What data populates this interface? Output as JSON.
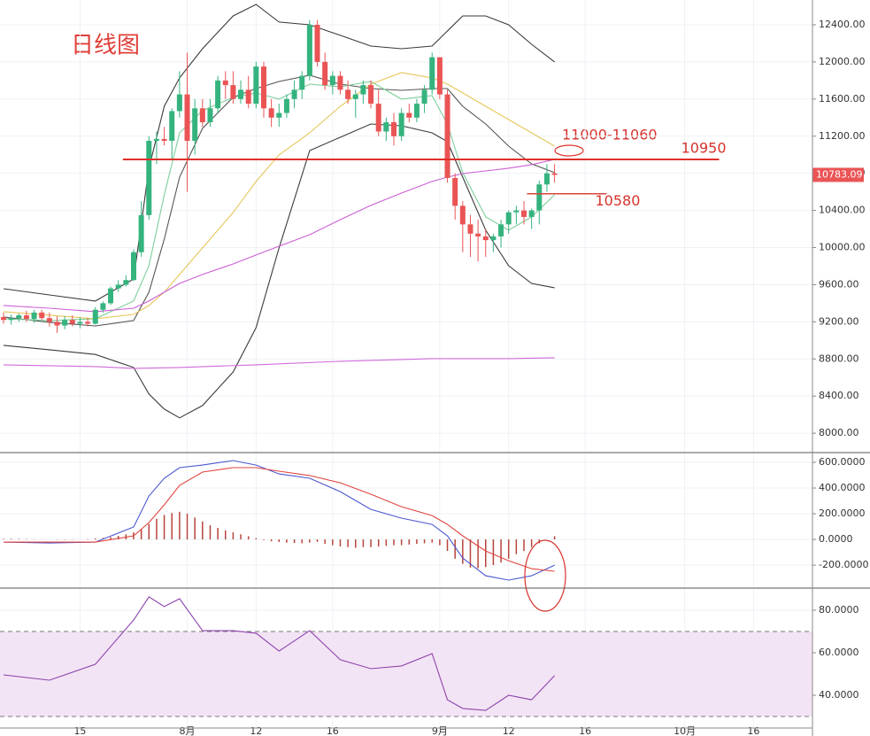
{
  "chart_data": [
    {
      "type": "candlestick",
      "title": "日线图",
      "range_label": "11000-11060",
      "xlim": [
        -0.46,
        105.7
      ],
      "ylim": [
        7801,
        12667
      ],
      "yticks": [
        {
          "value": 8000,
          "label": "8000.00"
        },
        {
          "value": 8400,
          "label": "8400.00"
        },
        {
          "value": 8800,
          "label": "8800.00"
        },
        {
          "value": 9200,
          "label": "9200.00"
        },
        {
          "value": 9600,
          "label": "9600.00"
        },
        {
          "value": 10000,
          "label": "10000.00"
        },
        {
          "value": 10400,
          "label": "10400.00"
        },
        {
          "value": 10800,
          "label": "10800.00"
        },
        {
          "value": 11200,
          "label": "11200.00"
        },
        {
          "value": 11600,
          "label": "11600.00"
        },
        {
          "value": 12000,
          "label": "12000.00"
        },
        {
          "value": 12400,
          "label": "12400.00"
        }
      ],
      "up_color": "#35b37e",
      "down_color": "#ea5455",
      "open": [
        9250,
        9220,
        9240,
        9270,
        9230,
        9300,
        9240,
        9200,
        9160,
        9220,
        9180,
        9200,
        9180,
        9330,
        9400,
        9560,
        9600,
        9650,
        9950,
        10350,
        11150,
        11170,
        11150,
        11470,
        11650,
        11150,
        11500,
        11350,
        11500,
        11800,
        11750,
        11600,
        11700,
        11550,
        11950,
        11500,
        11400,
        11450,
        11600,
        11700,
        11850,
        12400,
        12000,
        11750,
        11850,
        11700,
        11600,
        11650,
        11750,
        11550,
        11250,
        11350,
        11200,
        11450,
        11400,
        11550,
        11700,
        12050,
        11650,
        10750,
        10450,
        10250,
        10150,
        10120,
        10080,
        10120,
        10250,
        10380,
        10400,
        10330,
        10400,
        10680,
        10800
      ],
      "high": [
        9300,
        9280,
        9290,
        9320,
        9330,
        9330,
        9300,
        9260,
        9260,
        9270,
        9250,
        9240,
        9360,
        9420,
        9580,
        9650,
        9700,
        9980,
        10500,
        11200,
        11250,
        11300,
        11500,
        11900,
        12100,
        11600,
        11600,
        11600,
        11850,
        11900,
        11900,
        11800,
        11850,
        12000,
        12000,
        11600,
        11550,
        11650,
        11800,
        11900,
        12450,
        12450,
        12100,
        11900,
        11900,
        11800,
        11700,
        11800,
        11800,
        11700,
        11400,
        11450,
        11500,
        11550,
        11600,
        11750,
        12100,
        12050,
        11700,
        10800,
        10500,
        10350,
        10300,
        10200,
        10150,
        10300,
        10400,
        10450,
        10500,
        10420,
        10720,
        10900,
        10900
      ],
      "low": [
        9180,
        9170,
        9200,
        9200,
        9190,
        9220,
        9150,
        9080,
        9120,
        9150,
        9130,
        9150,
        9170,
        9300,
        9380,
        9520,
        9580,
        9640,
        9900,
        10300,
        10900,
        11100,
        10950,
        11400,
        10600,
        11000,
        11300,
        11300,
        11450,
        11600,
        11550,
        11550,
        11500,
        11500,
        11400,
        11300,
        11300,
        11400,
        11500,
        11600,
        11800,
        11950,
        11700,
        11650,
        11650,
        11550,
        11400,
        11550,
        11500,
        11200,
        11150,
        11100,
        11150,
        11350,
        11350,
        11450,
        11650,
        11600,
        10700,
        10300,
        9950,
        9900,
        9850,
        9900,
        9950,
        10000,
        10150,
        10250,
        10250,
        10200,
        10250,
        10600,
        10700
      ],
      "close": [
        9220,
        9240,
        9270,
        9230,
        9300,
        9240,
        9200,
        9160,
        9220,
        9180,
        9200,
        9180,
        9330,
        9400,
        9560,
        9600,
        9650,
        9950,
        10350,
        11150,
        11170,
        11150,
        11470,
        11650,
        11150,
        11500,
        11350,
        11500,
        11800,
        11750,
        11600,
        11700,
        11550,
        11950,
        11500,
        11400,
        11450,
        11600,
        11700,
        11850,
        12400,
        12000,
        11750,
        11850,
        11700,
        11600,
        11650,
        11750,
        11550,
        11250,
        11350,
        11200,
        11450,
        11400,
        11550,
        11700,
        12050,
        11650,
        10750,
        10450,
        10250,
        10150,
        10120,
        10080,
        10120,
        10250,
        10380,
        10400,
        10330,
        10400,
        10680,
        10800,
        10783.09
      ],
      "lines": [
        {
          "color": "#3a3a3a",
          "x": [
            0,
            6,
            12,
            17,
            19,
            21,
            23,
            26,
            30,
            33,
            36,
            40,
            44,
            48,
            52,
            56,
            58,
            60,
            63,
            66,
            69,
            72
          ],
          "values": [
            9557,
            9490,
            9424,
            9662,
            10855,
            11522,
            11828,
            12142,
            12495,
            12619,
            12429,
            12400,
            12286,
            12171,
            12142,
            12171,
            12333,
            12495,
            12495,
            12400,
            12190,
            12000
          ]
        },
        {
          "color": "#3a3a3a",
          "x": [
            0,
            6,
            12,
            17,
            19,
            21,
            23,
            26,
            30,
            33,
            36,
            40,
            44,
            48,
            52,
            56,
            58,
            60,
            63,
            66,
            69,
            72
          ],
          "values": [
            8947,
            8899,
            8849,
            8708,
            8422,
            8260,
            8165,
            8298,
            8660,
            9137,
            9996,
            11045,
            11188,
            11331,
            11312,
            11236,
            11141,
            10759,
            10187,
            9805,
            9614,
            9567
          ]
        },
        {
          "color": "#555555",
          "x": [
            0,
            6,
            12,
            17,
            19,
            21,
            23,
            26,
            30,
            33,
            36,
            40,
            44,
            48,
            52,
            56,
            58,
            60,
            63,
            66,
            69,
            72
          ],
          "values": [
            9252,
            9195,
            9156,
            9214,
            9519,
            10091,
            10759,
            11284,
            11618,
            11713,
            11789,
            11856,
            11761,
            11713,
            11694,
            11713,
            11713,
            11522,
            11331,
            11093,
            10902,
            10807
          ]
        },
        {
          "color": "#7ccf9a",
          "x": [
            0,
            6,
            12,
            17,
            19,
            21,
            23,
            26,
            30,
            33,
            36,
            40,
            44,
            48,
            52,
            56,
            58,
            60,
            63,
            66,
            69,
            72
          ],
          "values": [
            9233,
            9214,
            9233,
            9424,
            9805,
            10568,
            11236,
            11475,
            11618,
            11666,
            11599,
            11761,
            11732,
            11789,
            11599,
            11637,
            11331,
            10807,
            10330,
            10187,
            10330,
            10568
          ]
        },
        {
          "color": "#e6c65a",
          "x": [
            0,
            6,
            12,
            17,
            19,
            21,
            23,
            26,
            30,
            33,
            36,
            40,
            44,
            48,
            52,
            56,
            58,
            60,
            63,
            66,
            69,
            72
          ],
          "values": [
            9309,
            9271,
            9233,
            9280,
            9376,
            9519,
            9710,
            9996,
            10378,
            10712,
            10998,
            11236,
            11522,
            11761,
            11885,
            11828,
            11761,
            11666,
            11522,
            11379,
            11236,
            11093
          ]
        },
        {
          "color": "#cc5fd4",
          "x": [
            0,
            6,
            12,
            17,
            19,
            21,
            23,
            26,
            30,
            33,
            36,
            40,
            44,
            48,
            52,
            56,
            58,
            60,
            63,
            66,
            69,
            72
          ],
          "values": [
            9376,
            9347,
            9309,
            9347,
            9424,
            9519,
            9614,
            9710,
            9824,
            9920,
            10015,
            10139,
            10301,
            10454,
            10587,
            10712,
            10759,
            10797,
            10826,
            10855,
            10893,
            10950
          ]
        },
        {
          "color": "#d06ad8",
          "x": [
            0,
            12,
            17,
            23,
            33,
            44,
            56,
            66,
            72
          ],
          "values": [
            8737,
            8718,
            8699,
            8708,
            8737,
            8775,
            8804,
            8804,
            8813
          ]
        }
      ],
      "hlines": [
        {
          "value": 10950,
          "label": "10950",
          "color": "#e0302a",
          "x": [
            15.6,
            93.5
          ]
        },
        {
          "value": 10580,
          "label": "10580",
          "color": "#d9453f",
          "x": [
            68.4,
            78.8
          ]
        }
      ]
    },
    {
      "type": "macd",
      "xlim": [
        -0.46,
        105.7
      ],
      "ylim": [
        -372,
        669
      ],
      "yticks": [
        {
          "value": -200,
          "label": "-200.0000"
        },
        {
          "value": 0,
          "label": "0.0000"
        },
        {
          "value": 200,
          "label": "200.0000"
        },
        {
          "value": 400,
          "label": "400.0000"
        },
        {
          "value": 600,
          "label": "600.0000"
        }
      ],
      "histogram_color": "#b8443a",
      "histogram": [
        5,
        5,
        4,
        3,
        2,
        1,
        0,
        -2,
        -3,
        -2,
        0,
        3,
        8,
        12,
        18,
        28,
        40,
        55,
        80,
        120,
        160,
        190,
        205,
        215,
        200,
        170,
        140,
        110,
        90,
        70,
        55,
        40,
        25,
        10,
        -5,
        -15,
        -20,
        -25,
        -28,
        -30,
        -25,
        -20,
        -35,
        -45,
        -55,
        -60,
        -65,
        -60,
        -60,
        -55,
        -50,
        -45,
        -45,
        -40,
        -35,
        -30,
        -25,
        -45,
        -90,
        -150,
        -190,
        -220,
        -225,
        -215,
        -200,
        -180,
        -150,
        -115,
        -90,
        -60,
        -30,
        0,
        25
      ],
      "lines": [
        {
          "color": "#4b57d1",
          "x": [
            0,
            6,
            12,
            17,
            19,
            21,
            23,
            26,
            30,
            33,
            36,
            40,
            44,
            48,
            52,
            56,
            58,
            60,
            63,
            66,
            69,
            72
          ],
          "values": [
            -21,
            -28,
            -21,
            97,
            338,
            476,
            559,
            579,
            614,
            579,
            510,
            476,
            372,
            234,
            166,
            117,
            28,
            -145,
            -283,
            -317,
            -283,
            -200
          ]
        },
        {
          "color": "#e0453f",
          "x": [
            0,
            6,
            12,
            17,
            19,
            21,
            23,
            26,
            30,
            33,
            36,
            40,
            44,
            48,
            52,
            56,
            58,
            60,
            63,
            66,
            69,
            72
          ],
          "values": [
            -21,
            -21,
            -21,
            28,
            131,
            269,
            421,
            524,
            559,
            559,
            531,
            497,
            441,
            352,
            255,
            186,
            117,
            28,
            -90,
            -166,
            -228,
            -248
          ]
        }
      ]
    },
    {
      "type": "line",
      "xlim": [
        -0.46,
        105.7
      ],
      "ylim": [
        24.6,
        90
      ],
      "yticks": [
        {
          "value": 40,
          "label": "40.0000"
        },
        {
          "value": 60,
          "label": "60.0000"
        },
        {
          "value": 80,
          "label": "80.0000"
        }
      ],
      "band": [
        30,
        70
      ],
      "band_color": "#f3e4f5",
      "xticks": [
        {
          "value": 10,
          "label": "15"
        },
        {
          "value": 24,
          "label": "8月"
        },
        {
          "value": 33,
          "label": "12"
        },
        {
          "value": 43,
          "label": "16"
        },
        {
          "value": 57,
          "label": "9月"
        },
        {
          "value": 66,
          "label": "12"
        },
        {
          "value": 76,
          "label": "16"
        },
        {
          "value": 89,
          "label": "10月"
        },
        {
          "value": 98,
          "label": "16"
        }
      ],
      "lines": [
        {
          "color": "#8e44ad",
          "x": [
            0,
            6,
            12,
            17,
            19,
            21,
            23,
            26,
            30,
            33,
            36,
            40,
            44,
            48,
            52,
            56,
            58,
            60,
            63,
            66,
            69,
            72
          ],
          "values": [
            49.6,
            47.1,
            54.6,
            75.4,
            86.3,
            81.7,
            85.4,
            70.4,
            70.4,
            69.2,
            60.8,
            70.4,
            56.7,
            52.5,
            53.8,
            59.6,
            37.9,
            33.8,
            32.9,
            40.0,
            37.9,
            49.2
          ]
        }
      ]
    }
  ]
}
